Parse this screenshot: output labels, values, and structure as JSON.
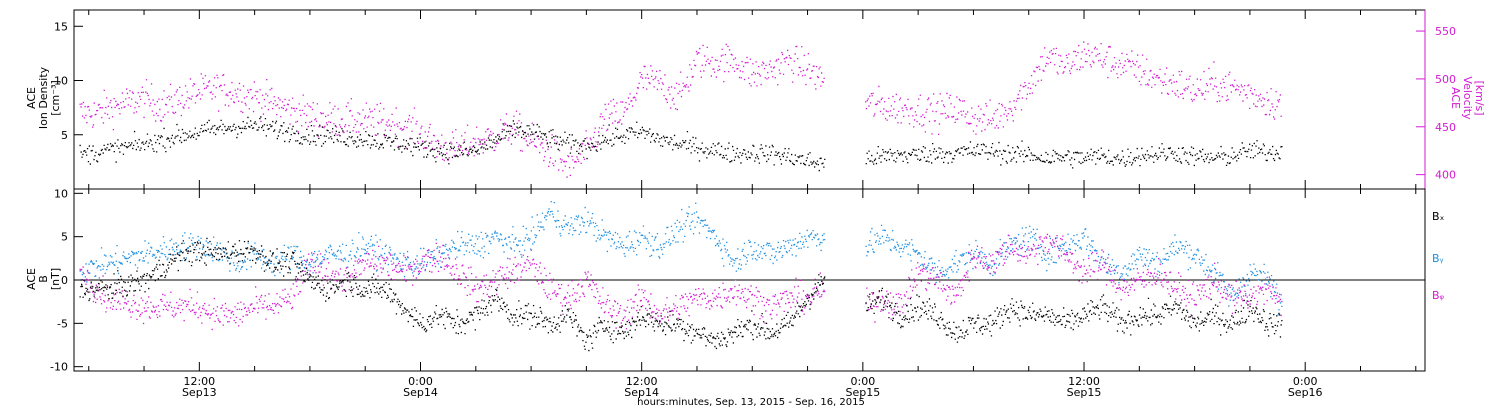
{
  "colors": {
    "density": "#000000",
    "velocity": "#d21bd2",
    "bx": "#000000",
    "by": "#1f8fe0",
    "bz": "#d21bd2",
    "axes": "#000000"
  },
  "x_axis": {
    "label": "hours:minutes, Sep. 13, 2015 - Sep. 16, 2015",
    "ticks": [
      {
        "hour": 12,
        "time": "12:00",
        "date": "Sep13"
      },
      {
        "hour": 24,
        "time": "0:00",
        "date": "Sep14"
      },
      {
        "hour": 36,
        "time": "12:00",
        "date": "Sep14"
      },
      {
        "hour": 48,
        "time": "0:00",
        "date": "Sep15"
      },
      {
        "hour": 60,
        "time": "12:00",
        "date": "Sep15"
      },
      {
        "hour": 72,
        "time": "0:00",
        "date": "Sep16"
      }
    ]
  },
  "panels": {
    "top": {
      "left_label": [
        "ACE",
        "Ion Density",
        "[cm⁻³]"
      ],
      "right_label": [
        "ACE",
        "Velocity",
        "[km/s]"
      ]
    },
    "bottom": {
      "left_label": [
        "ACE",
        "B",
        "[nT]"
      ],
      "legend": [
        "Bₓ",
        "Bᵧ",
        "Bᵩ"
      ]
    }
  },
  "chart_data": [
    {
      "type": "scatter",
      "panel": "top",
      "xlim": [
        5.2,
        78.5
      ],
      "ylim": [
        0,
        16.5
      ],
      "y_ticks": [
        5,
        10,
        15
      ],
      "y2lim": [
        385,
        572
      ],
      "y2_ticks": [
        400,
        450,
        500,
        550
      ],
      "data_gap_hours": [
        45.9,
        48.1
      ],
      "series": [
        {
          "name": "Ion Density",
          "axis": "left",
          "x": [
            5.5,
            7,
            9,
            11,
            12,
            13,
            14,
            15,
            16,
            17,
            18,
            19,
            20,
            21,
            22,
            23,
            24,
            25,
            26,
            27,
            28,
            29,
            30,
            31,
            32,
            33,
            34,
            35,
            36,
            37,
            38,
            39,
            40,
            41,
            42,
            43,
            44,
            45,
            45.8,
            48.3,
            49,
            50,
            51,
            52,
            53,
            54,
            55,
            56,
            57,
            58,
            59,
            60,
            61,
            62,
            63,
            64,
            65,
            66,
            67,
            68,
            69,
            70,
            70.7
          ],
          "y": [
            3.2,
            3.6,
            4.2,
            5.0,
            5.3,
            5.6,
            5.8,
            5.9,
            5.6,
            5.3,
            5.0,
            5.0,
            4.8,
            4.7,
            4.4,
            4.2,
            3.9,
            3.6,
            3.4,
            3.6,
            4.5,
            5.5,
            5.3,
            4.7,
            4.2,
            4.0,
            4.6,
            5.0,
            5.3,
            4.6,
            4.2,
            3.9,
            3.6,
            3.3,
            3.4,
            3.3,
            3.0,
            2.6,
            2.4,
            2.9,
            3.0,
            3.2,
            3.2,
            3.4,
            3.3,
            3.6,
            3.5,
            3.3,
            3.2,
            2.9,
            3.0,
            2.9,
            3.1,
            2.8,
            3.2,
            3.3,
            3.4,
            3.0,
            2.9,
            3.1,
            3.6,
            3.4,
            3.6
          ]
        },
        {
          "name": "Velocity",
          "axis": "right",
          "x": [
            5.5,
            6.5,
            7,
            8,
            9,
            10,
            11,
            12,
            13,
            14,
            15,
            16,
            17,
            18,
            19,
            20,
            21,
            22,
            23,
            24,
            25,
            26,
            27,
            28,
            29,
            30,
            31,
            32,
            33,
            34,
            35,
            36,
            37,
            38,
            39,
            40,
            41,
            42,
            43,
            44,
            45,
            45.8,
            48.3,
            49,
            50,
            51,
            52,
            53,
            54,
            55,
            56,
            57,
            58,
            59,
            60,
            61,
            62,
            63,
            64,
            65,
            66,
            67,
            68,
            69,
            70,
            70.7
          ],
          "y": [
            465,
            465,
            470,
            475,
            480,
            472,
            480,
            487,
            490,
            487,
            482,
            475,
            468,
            462,
            458,
            458,
            457,
            456,
            452,
            444,
            430,
            428,
            435,
            440,
            450,
            435,
            425,
            408,
            425,
            460,
            463,
            500,
            495,
            482,
            520,
            518,
            520,
            505,
            510,
            520,
            510,
            500,
            475,
            472,
            470,
            468,
            465,
            470,
            460,
            458,
            472,
            495,
            525,
            512,
            527,
            522,
            515,
            510,
            500,
            495,
            488,
            495,
            492,
            485,
            478,
            475
          ]
        }
      ]
    },
    {
      "type": "scatter",
      "panel": "bottom",
      "xlim": [
        5.2,
        78.5
      ],
      "ylim": [
        -10.5,
        10.5
      ],
      "y_ticks": [
        -10,
        -5,
        0,
        5,
        10
      ],
      "data_gap_hours": [
        45.9,
        48.1
      ],
      "series": [
        {
          "name": "Bx",
          "x": [
            5.5,
            7,
            9,
            11,
            12,
            13,
            14,
            15,
            16,
            17,
            18,
            19,
            20,
            21,
            22,
            23,
            24,
            25,
            26,
            27,
            28,
            29,
            30,
            31,
            32,
            33,
            34,
            35,
            36,
            37,
            38,
            39,
            40,
            41,
            42,
            43,
            44,
            45,
            45.8,
            48.3,
            49,
            50,
            51,
            52,
            53,
            54,
            55,
            56,
            57,
            58,
            59,
            60,
            61,
            62,
            63,
            64,
            65,
            66,
            67,
            68,
            69,
            70,
            70.7
          ],
          "y": [
            -1,
            -1,
            0,
            3,
            3.5,
            3,
            3.5,
            3.5,
            2,
            2,
            0,
            -1,
            0,
            -1,
            -1,
            -3,
            -5,
            -4,
            -5,
            -4,
            -2,
            -4,
            -4,
            -5,
            -4,
            -7,
            -5,
            -6,
            -4,
            -5,
            -5,
            -6,
            -7,
            -6,
            -5,
            -6,
            -5,
            -2,
            0,
            -3,
            -2,
            -4,
            -3,
            -4,
            -6,
            -5,
            -5,
            -3,
            -4,
            -4,
            -5,
            -4,
            -3,
            -5,
            -4,
            -4,
            -3,
            -5,
            -4,
            -5,
            -3,
            -5,
            -5
          ]
        },
        {
          "name": "By",
          "x": [
            5.5,
            7,
            9,
            11,
            12,
            13,
            14,
            15,
            16,
            17,
            18,
            19,
            20,
            21,
            22,
            23,
            24,
            25,
            26,
            27,
            28,
            29,
            30,
            31,
            32,
            33,
            34,
            35,
            36,
            37,
            38,
            39,
            40,
            41,
            42,
            43,
            44,
            45,
            45.8,
            48.3,
            49,
            50,
            51,
            52,
            53,
            54,
            55,
            56,
            57,
            58,
            59,
            60,
            61,
            62,
            63,
            64,
            65,
            66,
            67,
            68,
            69,
            70,
            70.7
          ],
          "y": [
            1,
            2,
            3,
            4,
            4,
            3.5,
            2,
            3,
            2,
            3,
            2,
            3,
            3,
            4,
            3,
            2,
            2,
            3,
            4,
            4,
            5,
            4,
            5,
            8,
            6,
            7,
            5,
            4,
            5,
            4,
            6,
            7,
            5,
            2,
            4,
            3,
            4,
            5,
            5,
            4,
            5,
            4,
            3,
            1,
            2,
            3,
            2,
            4,
            5,
            3,
            4,
            5,
            2,
            1,
            3,
            2,
            4,
            3,
            1,
            -2,
            1,
            0,
            -3
          ]
        },
        {
          "name": "Bz",
          "x": [
            5.5,
            7,
            9,
            11,
            12,
            13,
            14,
            15,
            16,
            17,
            18,
            19,
            20,
            21,
            22,
            23,
            24,
            25,
            26,
            27,
            28,
            29,
            30,
            31,
            32,
            33,
            34,
            35,
            36,
            37,
            38,
            39,
            40,
            41,
            42,
            43,
            44,
            45,
            45.8,
            48.3,
            49,
            50,
            51,
            52,
            53,
            54,
            55,
            56,
            57,
            58,
            59,
            60,
            61,
            62,
            63,
            64,
            65,
            66,
            67,
            68,
            69,
            70,
            70.7
          ],
          "y": [
            1,
            -2,
            -3,
            -3,
            -3,
            -4,
            -4,
            -3,
            -3,
            -2,
            2,
            1,
            0,
            2,
            2,
            1,
            2,
            3,
            1,
            -1,
            0,
            1,
            2,
            -1,
            -2,
            0,
            -3,
            -4,
            -2,
            -4,
            -3,
            -2,
            -2,
            -1,
            -2,
            -3,
            -2,
            -2,
            -1,
            -3,
            -2,
            -3,
            1,
            0,
            -2,
            3,
            2,
            4,
            3,
            5,
            3,
            1,
            2,
            -1,
            0,
            1,
            -1,
            -2,
            0,
            -2,
            -2,
            -1,
            -3
          ]
        }
      ]
    }
  ]
}
